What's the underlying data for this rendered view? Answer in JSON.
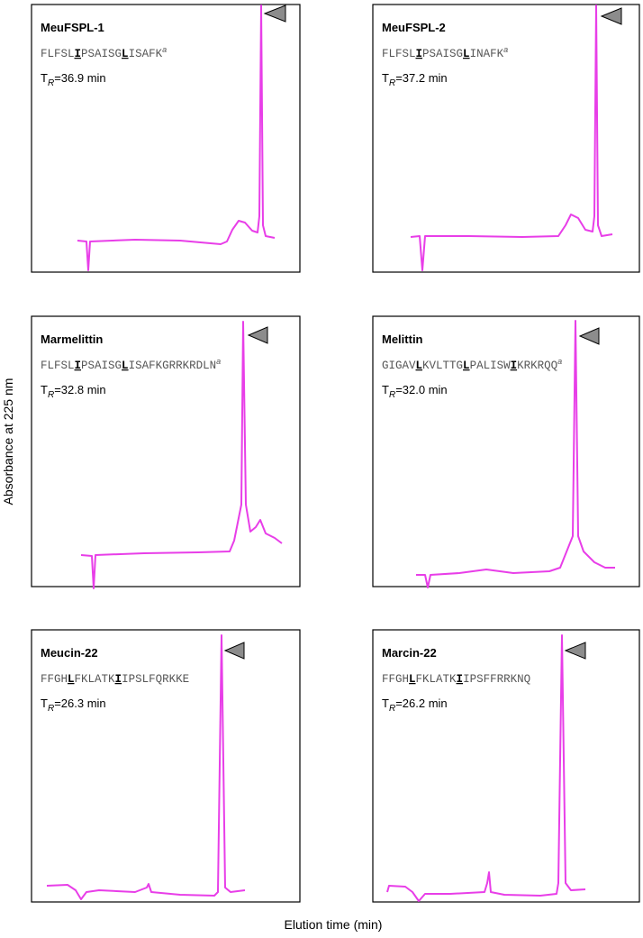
{
  "y_axis_label": "Absorbance at 225 nm",
  "x_axis_label": "Elution time (min)",
  "panels": [
    {
      "name": "MeuFSPL-1",
      "sequence": [
        {
          "text": "FLFSL"
        },
        {
          "text": "I",
          "emphasis": true
        },
        {
          "text": "PSAISG"
        },
        {
          "text": "L",
          "emphasis": true
        },
        {
          "text": "ISAFK"
        }
      ],
      "footnote": "a",
      "retention": {
        "symbol": "T",
        "subscript": "R",
        "text": "=36.9 min"
      }
    },
    {
      "name": "MeuFSPL-2",
      "sequence": [
        {
          "text": "FLFSL"
        },
        {
          "text": "I",
          "emphasis": true
        },
        {
          "text": "PSAISG"
        },
        {
          "text": "L",
          "emphasis": true
        },
        {
          "text": "INAFK"
        }
      ],
      "footnote": "a",
      "retention": {
        "symbol": "T",
        "subscript": "R",
        "text": "=37.2 min"
      }
    },
    {
      "name": "Marmelittin",
      "sequence": [
        {
          "text": "FLFSL"
        },
        {
          "text": "I",
          "emphasis": true
        },
        {
          "text": "PSAISG"
        },
        {
          "text": "L",
          "emphasis": true
        },
        {
          "text": "ISAFKGRRKRDLN"
        }
      ],
      "footnote": "a",
      "retention": {
        "symbol": "T",
        "subscript": "R",
        "text": "=32.8 min"
      }
    },
    {
      "name": "Melittin",
      "sequence": [
        {
          "text": "GIGAV"
        },
        {
          "text": "L",
          "emphasis": true
        },
        {
          "text": "KVLTTG"
        },
        {
          "text": "L",
          "emphasis": true
        },
        {
          "text": "PALISW"
        },
        {
          "text": "I",
          "emphasis": true
        },
        {
          "text": "KRKRQQ"
        }
      ],
      "footnote": "a",
      "retention": {
        "symbol": "T",
        "subscript": "R",
        "text": "=32.0 min"
      }
    },
    {
      "name": "Meucin-22",
      "sequence": [
        {
          "text": "FFGH"
        },
        {
          "text": "L",
          "emphasis": true
        },
        {
          "text": "FKLATK"
        },
        {
          "text": "I",
          "emphasis": true
        },
        {
          "text": "IPSLFQRKKE"
        }
      ],
      "retention": {
        "symbol": "T",
        "subscript": "R",
        "text": "=26.3 min"
      }
    },
    {
      "name": "Marcin-22",
      "sequence": [
        {
          "text": "FFGH"
        },
        {
          "text": "L",
          "emphasis": true
        },
        {
          "text": "FKLATK"
        },
        {
          "text": "I",
          "emphasis": true
        },
        {
          "text": "IPSFFRRKNQ"
        }
      ],
      "retention": {
        "symbol": "T",
        "subscript": "R",
        "text": "=26.2 min"
      }
    }
  ]
}
